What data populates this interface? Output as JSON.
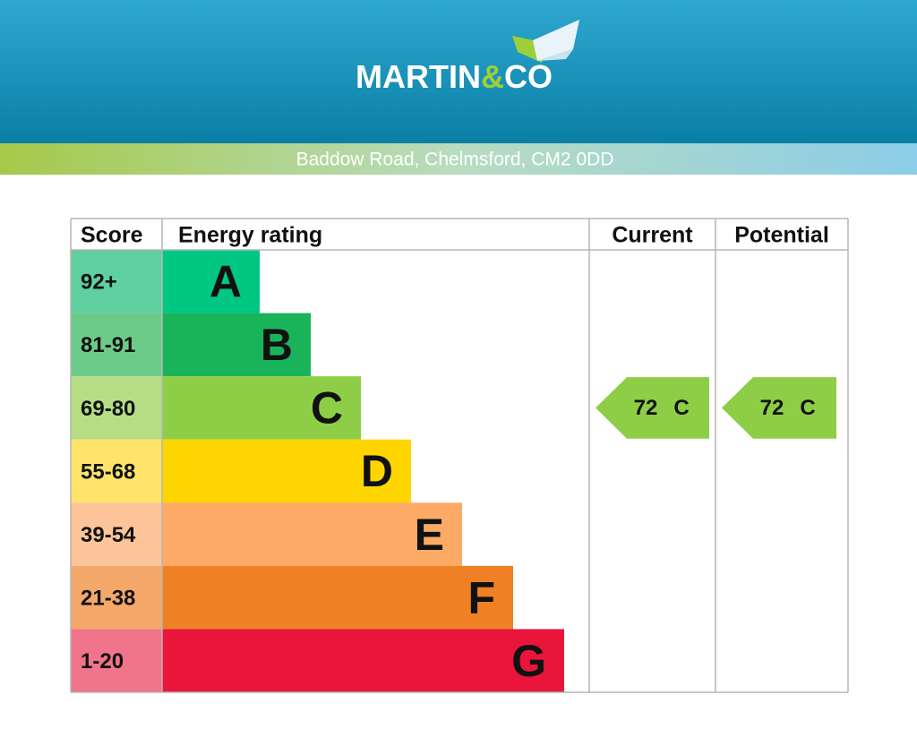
{
  "header": {
    "brand_parts": [
      "MARTIN",
      "&",
      "CO"
    ],
    "address": "Baddow Road, Chelmsford, CM2 0DD"
  },
  "table": {
    "headers": [
      "Score",
      "Energy rating",
      "Current",
      "Potential"
    ],
    "bands": [
      {
        "score": "92+",
        "rating": "A",
        "color": "#00c781",
        "score_color": "#5fcf9f"
      },
      {
        "score": "81-91",
        "rating": "B",
        "color": "#19b459",
        "score_color": "#6dcb8a"
      },
      {
        "score": "69-80",
        "rating": "C",
        "color": "#8dce46",
        "score_color": "#b5de84"
      },
      {
        "score": "55-68",
        "rating": "D",
        "color": "#ffd500",
        "score_color": "#ffe36a"
      },
      {
        "score": "39-54",
        "rating": "E",
        "color": "#fcaa65",
        "score_color": "#fdc49a"
      },
      {
        "score": "21-38",
        "rating": "F",
        "color": "#ef8023",
        "score_color": "#f4a869"
      },
      {
        "score": "1-20",
        "rating": "G",
        "color": "#e9153b",
        "score_color": "#f0748a"
      }
    ],
    "current": {
      "score": 72,
      "rating": "C"
    },
    "potential": {
      "score": 72,
      "rating": "C"
    }
  }
}
